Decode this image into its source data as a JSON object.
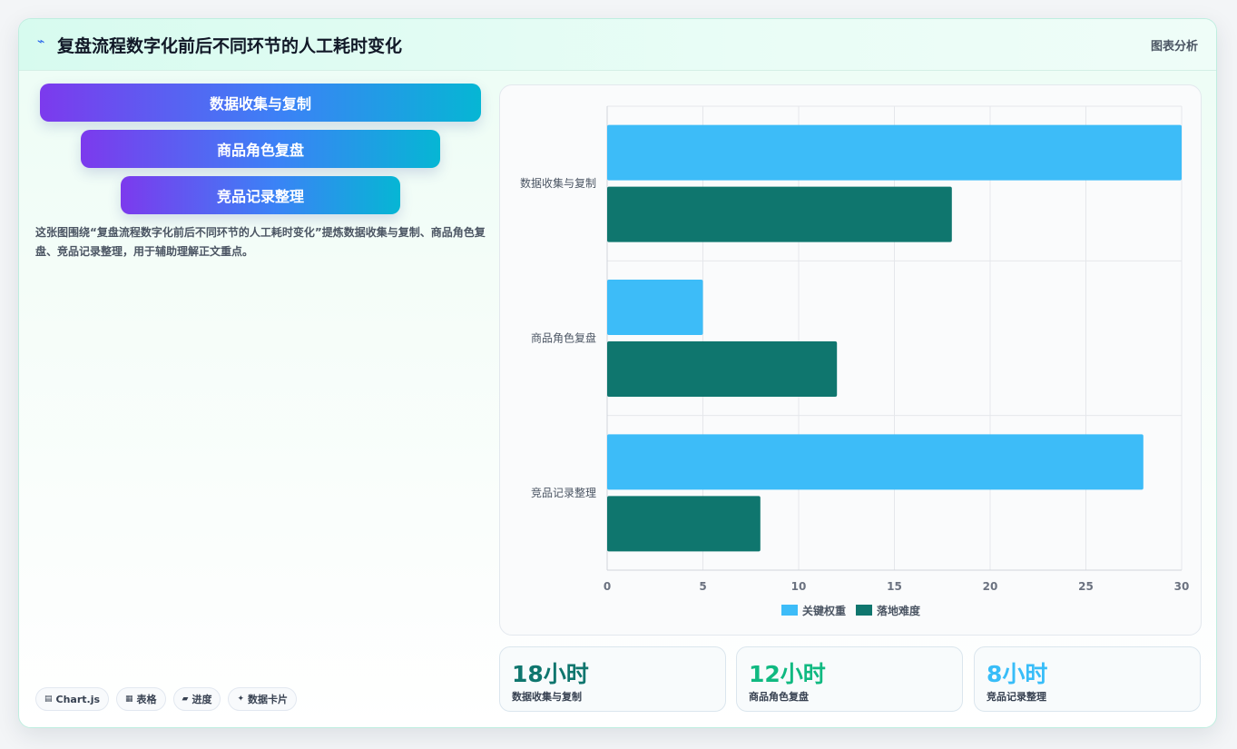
{
  "header": {
    "icon": "bolt-icon",
    "title": "复盘流程数字化前后不同环节的人工耗时变化",
    "right_label": "图表分析"
  },
  "funnel": {
    "items": [
      {
        "label": "数据收集与复制"
      },
      {
        "label": "商品角色复盘"
      },
      {
        "label": "竞品记录整理"
      }
    ]
  },
  "description": "这张图围绕“复盘流程数字化前后不同环节的人工耗时变化”提炼数据收集与复制、商品角色复盘、竞品记录整理，用于辅助理解正文重点。",
  "tags": [
    {
      "icon": "chart-icon",
      "glyph": "▤",
      "label": "Chart.js"
    },
    {
      "icon": "table-icon",
      "glyph": "▦",
      "label": "表格"
    },
    {
      "icon": "progress-icon",
      "glyph": "▰",
      "label": "进度"
    },
    {
      "icon": "sparkle-icon",
      "glyph": "✦",
      "label": "数据卡片"
    }
  ],
  "chart_data": {
    "type": "bar",
    "orientation": "horizontal",
    "categories": [
      "数据收集与复制",
      "商品角色复盘",
      "竞品记录整理"
    ],
    "series": [
      {
        "name": "关键权重",
        "values": [
          30,
          5,
          28
        ],
        "color": "#3dbcf8"
      },
      {
        "name": "落地难度",
        "values": [
          18,
          12,
          8
        ],
        "color": "#0f766e"
      }
    ],
    "xlim": [
      0,
      30
    ],
    "xticks": [
      "0",
      "5",
      "10",
      "15",
      "20",
      "25",
      "30"
    ],
    "grid": true,
    "legend": "bottom"
  },
  "stats": [
    {
      "value": "18小时",
      "label": "数据收集与复制",
      "color": "#0f766e"
    },
    {
      "value": "12小时",
      "label": "商品角色复盘",
      "color": "#10b981"
    },
    {
      "value": "8小时",
      "label": "竞品记录整理",
      "color": "#38bdf8"
    }
  ]
}
